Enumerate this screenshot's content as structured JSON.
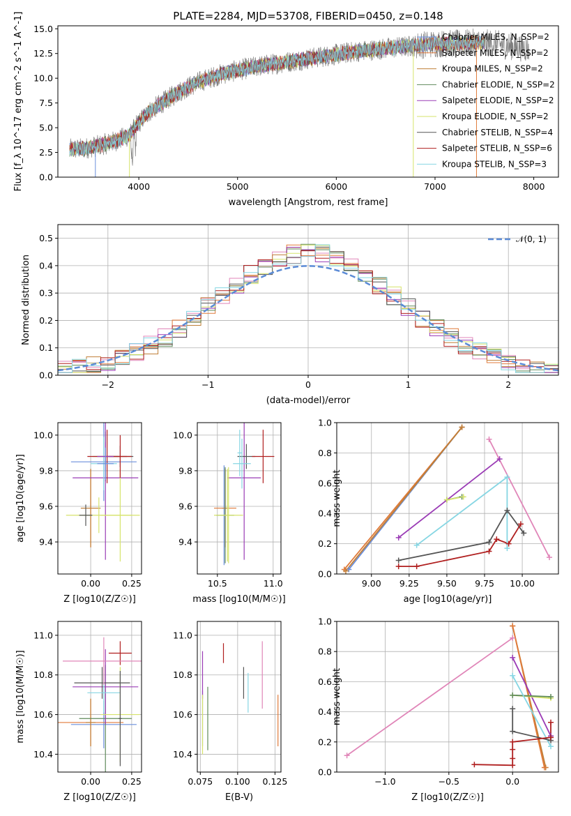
{
  "chart_data": [
    {
      "id": "spectrum",
      "type": "line",
      "title": "PLATE=2284, MJD=53708, FIBERID=0450, z=0.148",
      "xlabel": "wavelength [Angstrom, rest frame]",
      "ylabel": "Flux [f_λ 10^-17 erg cm^-2 s^-1 A^-1]",
      "xlim": [
        3180,
        8250
      ],
      "ylim": [
        0,
        15.3
      ],
      "xticks": [
        4000,
        5000,
        6000,
        7000,
        8000
      ],
      "yticks": [
        0.0,
        2.5,
        5.0,
        7.5,
        10.0,
        12.5,
        15.0
      ],
      "ytick_labels": [
        "0.0",
        "2.5",
        "5.0",
        "7.5",
        "10.0",
        "12.5",
        "15.0"
      ],
      "legend_position": "top-right",
      "series": [
        {
          "name": "Chabrier MILES, N_SSP=2",
          "color": "#6a8fdc"
        },
        {
          "name": "Salpeter MILES, N_SSP=2",
          "color": "#e07a3a"
        },
        {
          "name": "Kroupa MILES, N_SSP=2",
          "color": "#c07f37"
        },
        {
          "name": "Chabrier ELODIE, N_SSP=2",
          "color": "#5f8a5a"
        },
        {
          "name": "Salpeter ELODIE, N_SSP=2",
          "color": "#9a3bb5"
        },
        {
          "name": "Kroupa ELODIE, N_SSP=2",
          "color": "#d6e36b"
        },
        {
          "name": "Chabrier STELIB, N_SSP=4",
          "color": "#555555"
        },
        {
          "name": "Salpeter STELIB, N_SSP=6",
          "color": "#b01f1f"
        },
        {
          "name": "Kroupa STELIB, N_SSP=3",
          "color": "#86d6e3"
        }
      ],
      "data_color": "#7f7f7f",
      "continuum": {
        "x": [
          3300,
          3450,
          3600,
          3750,
          3900,
          4000,
          4100,
          4250,
          4400,
          4600,
          4800,
          5000,
          5200,
          5400,
          5600,
          5800,
          6000,
          6200,
          6400,
          6600,
          6800,
          7000,
          7200,
          7400,
          7600,
          7800,
          7950
        ],
        "y": [
          2.8,
          2.9,
          3.2,
          3.6,
          4.2,
          5.5,
          6.6,
          7.6,
          8.6,
          9.6,
          10.3,
          10.8,
          11.2,
          11.5,
          11.8,
          12.1,
          12.4,
          12.7,
          12.9,
          13.1,
          13.3,
          13.5,
          13.5,
          13.6,
          13.5,
          13.2,
          13.0
        ]
      },
      "model_end_wavelength": 7500
    },
    {
      "id": "residuals",
      "type": "bar",
      "xlabel": "(data-model)/error",
      "ylabel": "Normed distribution",
      "xlim": [
        -2.5,
        2.5
      ],
      "ylim": [
        0,
        0.55
      ],
      "xticks": [
        -2,
        -1,
        0,
        1,
        2
      ],
      "xtick_labels": [
        "−2",
        "−1",
        "0",
        "1",
        "2"
      ],
      "yticks": [
        0.0,
        0.1,
        0.2,
        0.3,
        0.4,
        0.5
      ],
      "ytick_labels": [
        "0.0",
        "0.1",
        "0.2",
        "0.3",
        "0.4",
        "0.5"
      ],
      "legend_position": "top-right",
      "gaussian_label": "𝒩(0, 1)",
      "gaussian_color": "#5b8bd6",
      "bins": 35
    },
    {
      "id": "age_vs_Z",
      "type": "scatter",
      "xlabel": "Z [log10(Z/Z☉)]",
      "ylabel": "age  [log10(age/yr)]",
      "xlim": [
        -0.2,
        0.31
      ],
      "ylim": [
        9.22,
        10.07
      ],
      "xticks": [
        0.0,
        0.25
      ],
      "xtick_labels": [
        "0.00",
        "0.25"
      ],
      "yticks": [
        9.4,
        9.6,
        9.8,
        10.0
      ],
      "ytick_labels": [
        "9.4",
        "9.6",
        "9.8",
        "10.0"
      ],
      "points": [
        {
          "s": 0,
          "x": 0.08,
          "y": 9.85,
          "xe": 0.2,
          "ye": 0.22
        },
        {
          "s": 1,
          "x": 0.0,
          "y": 9.59,
          "xe": 0.06,
          "ye": 0.22
        },
        {
          "s": 2,
          "x": 0.0,
          "y": 9.59,
          "xe": 0.06,
          "ye": 0.22
        },
        {
          "s": 3,
          "x": 0.09,
          "y": 9.88,
          "xe": 0.08,
          "ye": 0.14
        },
        {
          "s": 4,
          "x": 0.09,
          "y": 9.76,
          "xe": 0.2,
          "ye": 0.46
        },
        {
          "s": 5,
          "x": 0.18,
          "y": 9.55,
          "xe": 0.12,
          "ye": 0.26
        },
        {
          "s": 6,
          "x": 0.18,
          "y": 9.88,
          "xe": 0.08,
          "ye": 0.06
        },
        {
          "s": 7,
          "x": 0.1,
          "y": 9.88,
          "xe": 0.12,
          "ye": 0.15
        },
        {
          "s": 8,
          "x": 0.08,
          "y": 9.84,
          "xe": 0.08,
          "ye": 0.15
        },
        {
          "s": 5,
          "x": 0.05,
          "y": 9.55,
          "xe": 0.2,
          "ye": 0.1
        },
        {
          "s": 7,
          "x": 0.18,
          "y": 9.88,
          "xe": 0.07,
          "ye": 0.12
        },
        {
          "s": 6,
          "x": -0.03,
          "y": 9.55,
          "xe": 0.04,
          "ye": 0.06
        },
        {
          "s": 4,
          "x": 0.09,
          "y": 9.88,
          "xe": 0.05,
          "ye": 0.08
        },
        {
          "s": 0,
          "x": 0.09,
          "y": 9.84,
          "xe": 0.05,
          "ye": 0.09
        }
      ]
    },
    {
      "id": "age_vs_mass",
      "type": "scatter",
      "xlabel": "mass [log10(M/M☉)]",
      "ylabel": "",
      "xlim": [
        10.32,
        11.07
      ],
      "ylim": [
        9.22,
        10.07
      ],
      "xticks": [
        10.5,
        11.0
      ],
      "xtick_labels": [
        "10.5",
        "11.0"
      ],
      "yticks": [
        9.4,
        9.6,
        9.8,
        10.0
      ],
      "ytick_labels": [
        "9.4",
        "9.6",
        "9.8",
        "10.0"
      ],
      "points": [
        {
          "s": 0,
          "x": 10.56,
          "y": 9.55,
          "xe": 0.03,
          "ye": 0.28
        },
        {
          "s": 1,
          "x": 10.57,
          "y": 9.59,
          "xe": 0.1,
          "ye": 0.22
        },
        {
          "s": 2,
          "x": 10.57,
          "y": 9.59,
          "xe": 0.03,
          "ye": 0.22
        },
        {
          "s": 3,
          "x": 10.57,
          "y": 9.55,
          "xe": 0.08,
          "ye": 0.27
        },
        {
          "s": 4,
          "x": 10.74,
          "y": 9.76,
          "xe": 0.15,
          "ye": 0.46
        },
        {
          "s": 5,
          "x": 10.6,
          "y": 9.55,
          "xe": 0.13,
          "ye": 0.27
        },
        {
          "s": 6,
          "x": 10.76,
          "y": 9.88,
          "xe": 0.08,
          "ye": 0.07
        },
        {
          "s": 7,
          "x": 10.91,
          "y": 9.88,
          "xe": 0.1,
          "ye": 0.15
        },
        {
          "s": 8,
          "x": 10.72,
          "y": 9.84,
          "xe": 0.08,
          "ye": 0.14
        },
        {
          "s": 8,
          "x": 10.7,
          "y": 9.9,
          "xe": 0.02,
          "ye": 0.13
        },
        {
          "s": 5,
          "x": 10.59,
          "y": 9.55,
          "xe": 0.02,
          "ye": 0.26
        }
      ]
    },
    {
      "id": "weight_vs_age",
      "type": "line",
      "xlabel": "age  [log10(age/yr)]",
      "ylabel": "mass weight",
      "xlim": [
        8.77,
        10.24
      ],
      "ylim": [
        0,
        1.0
      ],
      "xticks": [
        9.0,
        9.25,
        9.5,
        9.75,
        10.0
      ],
      "xtick_labels": [
        "9.00",
        "9.25",
        "9.50",
        "9.75",
        "10.00"
      ],
      "yticks": [
        0.0,
        0.2,
        0.4,
        0.6,
        0.8,
        1.0
      ],
      "ytick_labels": [
        "0.0",
        "0.2",
        "0.4",
        "0.6",
        "0.8",
        "1.0"
      ],
      "series": [
        {
          "s": 0,
          "x": [
            8.85,
            9.6
          ],
          "y": [
            0.03,
            0.97
          ]
        },
        {
          "s": 1,
          "x": [
            8.82,
            9.6
          ],
          "y": [
            0.03,
            0.97
          ]
        },
        {
          "s": 2,
          "x": [
            8.83,
            9.6
          ],
          "y": [
            0.02,
            0.97
          ]
        },
        {
          "s": 3,
          "x": [
            9.5,
            9.6
          ],
          "y": [
            0.49,
            0.51
          ]
        },
        {
          "s": 4,
          "x": [
            9.18,
            9.85
          ],
          "y": [
            0.24,
            0.76
          ]
        },
        {
          "s": 5,
          "x": [
            9.5,
            9.61
          ],
          "y": [
            0.49,
            0.51
          ]
        },
        {
          "s": 6,
          "x": [
            9.18,
            9.78,
            9.9,
            10.01
          ],
          "y": [
            0.09,
            0.21,
            0.42,
            0.27
          ]
        },
        {
          "s": 7,
          "x": [
            9.18,
            9.3,
            9.78,
            9.83,
            9.91,
            9.99
          ],
          "y": [
            0.05,
            0.05,
            0.15,
            0.23,
            0.2,
            0.33
          ]
        },
        {
          "s": 8,
          "x": [
            9.3,
            9.9,
            9.9
          ],
          "y": [
            0.19,
            0.64,
            0.17
          ]
        },
        {
          "s": 9,
          "x": [
            9.78,
            10.18
          ],
          "y": [
            0.89,
            0.11
          ]
        }
      ]
    },
    {
      "id": "mass_vs_Z",
      "type": "scatter",
      "xlabel": "Z [log10(Z/Z☉)]",
      "ylabel": "mass [log10(M/M☉)]",
      "xlim": [
        -0.2,
        0.31
      ],
      "ylim": [
        10.31,
        11.07
      ],
      "xticks": [
        0.0,
        0.25
      ],
      "xtick_labels": [
        "0.00",
        "0.25"
      ],
      "yticks": [
        10.4,
        10.6,
        10.8,
        11.0
      ],
      "ytick_labels": [
        "10.4",
        "10.6",
        "10.8",
        "11.0"
      ],
      "points": [
        {
          "s": 0,
          "x": 0.08,
          "y": 10.55,
          "xe": 0.2,
          "ye": 0.12
        },
        {
          "s": 1,
          "x": 0.0,
          "y": 10.56,
          "xe": 0.2,
          "ye": 0.12
        },
        {
          "s": 2,
          "x": 0.0,
          "y": 10.56,
          "xe": 0.03,
          "ye": 0.12
        },
        {
          "s": 3,
          "x": 0.09,
          "y": 10.58,
          "xe": 0.16,
          "ye": 0.27
        },
        {
          "s": 4,
          "x": 0.09,
          "y": 10.74,
          "xe": 0.2,
          "ye": 0.19
        },
        {
          "s": 5,
          "x": 0.18,
          "y": 10.6,
          "xe": 0.12,
          "ye": 0.24
        },
        {
          "s": 6,
          "x": 0.07,
          "y": 10.76,
          "xe": 0.17,
          "ye": 0.08
        },
        {
          "s": 7,
          "x": 0.18,
          "y": 10.91,
          "xe": 0.07,
          "ye": 0.06
        },
        {
          "s": 8,
          "x": 0.08,
          "y": 10.71,
          "xe": 0.1,
          "ye": 0.1
        },
        {
          "s": 9,
          "x": 0.08,
          "y": 10.87,
          "xe": 0.25,
          "ye": 0.12
        },
        {
          "s": 6,
          "x": 0.18,
          "y": 10.58,
          "xe": 0.01,
          "ye": 0.24
        }
      ]
    },
    {
      "id": "mass_vs_ebv",
      "type": "scatter",
      "xlabel": "E(B-V)",
      "ylabel": "",
      "xlim": [
        0.073,
        0.129
      ],
      "ylim": [
        10.31,
        11.07
      ],
      "xticks": [
        0.075,
        0.1,
        0.125
      ],
      "xtick_labels": [
        "0.075",
        "0.100",
        "0.125"
      ],
      "yticks": [
        10.4,
        10.6,
        10.8,
        11.0
      ],
      "ytick_labels": [
        "10.4",
        "10.6",
        "10.8",
        "11.0"
      ],
      "points": [
        {
          "s": 0,
          "x": 0.0765,
          "y": 10.58,
          "xe": 0.0,
          "ye": 0.14
        },
        {
          "s": 1,
          "x": 0.127,
          "y": 10.57,
          "xe": 0.0,
          "ye": 0.13
        },
        {
          "s": 3,
          "x": 0.08,
          "y": 10.58,
          "xe": 0.0,
          "ye": 0.16
        },
        {
          "s": 4,
          "x": 0.0765,
          "y": 10.8,
          "xe": 0.0,
          "ye": 0.12
        },
        {
          "s": 5,
          "x": 0.0765,
          "y": 10.55,
          "xe": 0.0,
          "ye": 0.15
        },
        {
          "s": 6,
          "x": 0.104,
          "y": 10.76,
          "xe": 0.0,
          "ye": 0.08
        },
        {
          "s": 7,
          "x": 0.0905,
          "y": 10.91,
          "xe": 0.0,
          "ye": 0.05
        },
        {
          "s": 8,
          "x": 0.107,
          "y": 10.71,
          "xe": 0.0,
          "ye": 0.1
        },
        {
          "s": 9,
          "x": 0.1165,
          "y": 10.8,
          "xe": 0.0,
          "ye": 0.17
        }
      ]
    },
    {
      "id": "weight_vs_Z",
      "type": "line",
      "xlabel": "Z [log10(Z/Z☉)]",
      "ylabel": "mass weight",
      "xlim": [
        -1.38,
        0.36
      ],
      "ylim": [
        0,
        1.0
      ],
      "xticks": [
        -1.0,
        -0.5,
        0.0
      ],
      "xtick_labels": [
        "−1.0",
        "−0.5",
        "0.0"
      ],
      "yticks": [
        0.0,
        0.2,
        0.4,
        0.6,
        0.8,
        1.0
      ],
      "ytick_labels": [
        "0.0",
        "0.2",
        "0.4",
        "0.6",
        "0.8",
        "1.0"
      ],
      "series": [
        {
          "s": 9,
          "x": [
            -1.3,
            0.0
          ],
          "y": [
            0.11,
            0.89
          ]
        },
        {
          "s": 2,
          "x": [
            0.0,
            0.26
          ],
          "y": [
            0.97,
            0.03
          ]
        },
        {
          "s": 1,
          "x": [
            0.0,
            0.25
          ],
          "y": [
            0.97,
            0.03
          ]
        },
        {
          "s": 4,
          "x": [
            0.0,
            0.3
          ],
          "y": [
            0.76,
            0.24
          ]
        },
        {
          "s": 5,
          "x": [
            0.0,
            0.3
          ],
          "y": [
            0.51,
            0.49
          ]
        },
        {
          "s": 3,
          "x": [
            0.0,
            0.3
          ],
          "y": [
            0.51,
            0.5
          ]
        },
        {
          "s": 8,
          "x": [
            0.0,
            0.3
          ],
          "y": [
            0.64,
            0.17
          ]
        },
        {
          "s": 6,
          "x": [
            0.0,
            0.0,
            0.3,
            0.3
          ],
          "y": [
            0.42,
            0.27,
            0.21,
            0.23
          ]
        },
        {
          "s": 7,
          "x": [
            -0.3,
            0.0,
            0.0,
            0.0,
            0.0,
            0.3,
            0.3
          ],
          "y": [
            0.05,
            0.045,
            0.09,
            0.15,
            0.2,
            0.23,
            0.33
          ]
        }
      ]
    }
  ],
  "colors": [
    "#6a8fdc",
    "#e07a3a",
    "#c07f37",
    "#5f8a5a",
    "#9a3bb5",
    "#d6e36b",
    "#555555",
    "#b01f1f",
    "#86d6e3",
    "#e085b8"
  ]
}
